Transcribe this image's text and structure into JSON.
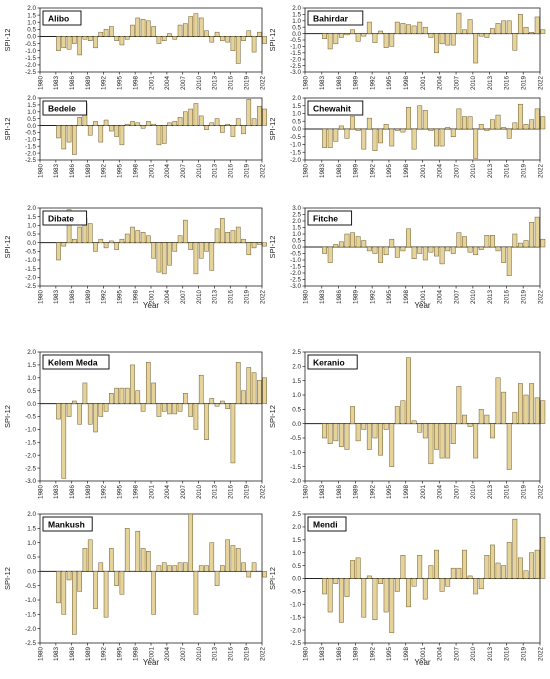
{
  "figure": {
    "colors": {
      "bar_fill": "#e6d39a",
      "bar_stroke": "#6b5a2e",
      "axis": "#222222",
      "title_box": "#000000"
    },
    "shared_xticks": [
      "1980",
      "1983",
      "1986",
      "1989",
      "1992",
      "1995",
      "1998",
      "2001",
      "2004",
      "2007",
      "2010",
      "2013",
      "2016",
      "2019",
      "2022"
    ],
    "ylabel": "SPI-12",
    "xlabel": "Year"
  },
  "chart_data": [
    {
      "type": "bar",
      "title": "Alibo",
      "ylabel": "SPI-12",
      "xlabel": "",
      "ylim": [
        -2.5,
        2.0
      ],
      "yticks": [
        "2.0",
        "1.5",
        "1.0",
        "0.5",
        "0.0",
        "-0.5",
        "-1.0",
        "-1.5",
        "-2.0",
        "-2.5"
      ],
      "x": [
        1983,
        1984,
        1985,
        1986,
        1987,
        1988,
        1989,
        1990,
        1991,
        1992,
        1993,
        1994,
        1995,
        1996,
        1997,
        1998,
        1999,
        2000,
        2001,
        2002,
        2003,
        2004,
        2005,
        2006,
        2007,
        2008,
        2009,
        2010,
        2011,
        2012,
        2013,
        2014,
        2015,
        2016,
        2017,
        2018,
        2019,
        2020,
        2021,
        2022
      ],
      "values": [
        -1.0,
        -0.8,
        -0.9,
        -0.5,
        -1.3,
        -0.2,
        -0.3,
        -0.8,
        0.3,
        0.5,
        0.7,
        -0.3,
        -0.6,
        -0.2,
        0.8,
        1.3,
        1.2,
        1.1,
        0.7,
        -0.5,
        -0.3,
        0.2,
        -0.2,
        0.8,
        0.9,
        1.4,
        1.6,
        1.3,
        0.4,
        -0.4,
        0.3,
        -0.3,
        -0.4,
        -1.0,
        -1.9,
        -0.3,
        0.4,
        -1.1,
        0.3,
        -0.5
      ],
      "grid": false
    },
    {
      "type": "bar",
      "title": "Bahirdar",
      "ylabel": "SPI-12",
      "xlabel": "",
      "ylim": [
        -3.0,
        2.0
      ],
      "yticks": [
        "2.0",
        "1.5",
        "1.0",
        "0.5",
        "0.0",
        "-0.5",
        "-1.0",
        "-1.5",
        "-2.0",
        "-2.5",
        "-3.0"
      ],
      "x": [
        1983,
        1984,
        1985,
        1986,
        1987,
        1988,
        1989,
        1990,
        1991,
        1992,
        1993,
        1994,
        1995,
        1996,
        1997,
        1998,
        1999,
        2000,
        2001,
        2002,
        2003,
        2004,
        2005,
        2006,
        2007,
        2008,
        2009,
        2010,
        2011,
        2012,
        2013,
        2014,
        2015,
        2016,
        2017,
        2018,
        2019,
        2020,
        2021,
        2022
      ],
      "values": [
        -0.4,
        -1.2,
        -0.8,
        -0.3,
        -0.1,
        0.3,
        -0.6,
        -0.2,
        0.9,
        -0.7,
        0.2,
        -1.1,
        -1.0,
        0.9,
        0.8,
        0.7,
        0.6,
        0.9,
        0.5,
        -0.3,
        -1.5,
        -0.8,
        -0.9,
        -0.9,
        1.6,
        0.3,
        1.1,
        -2.3,
        -0.2,
        -0.3,
        0.4,
        0.8,
        1.0,
        1.0,
        -1.3,
        1.5,
        0.5,
        0.1,
        1.3,
        0.3
      ],
      "grid": false
    },
    {
      "type": "bar",
      "title": "Bedele",
      "ylabel": "SPI-12",
      "xlabel": "",
      "ylim": [
        -2.5,
        2.0
      ],
      "yticks": [
        "2.0",
        "1.5",
        "1.0",
        "0.5",
        "0.0",
        "-0.5",
        "-1.0",
        "-1.5",
        "-2.0",
        "-2.5"
      ],
      "x": [
        1983,
        1984,
        1985,
        1986,
        1987,
        1988,
        1989,
        1990,
        1991,
        1992,
        1993,
        1994,
        1995,
        1996,
        1997,
        1998,
        1999,
        2000,
        2001,
        2002,
        2003,
        2004,
        2005,
        2006,
        2007,
        2008,
        2009,
        2010,
        2011,
        2012,
        2013,
        2014,
        2015,
        2016,
        2017,
        2018,
        2019,
        2020,
        2021,
        2022
      ],
      "values": [
        -0.9,
        -1.7,
        -1.2,
        -2.1,
        0.6,
        1.6,
        -0.7,
        0.3,
        -1.2,
        0.4,
        -0.4,
        -0.8,
        -1.4,
        0.1,
        0.3,
        0.2,
        -0.2,
        0.3,
        0.1,
        -1.4,
        -1.3,
        0.2,
        0.3,
        0.6,
        1.0,
        1.2,
        1.6,
        0.7,
        -0.3,
        0.2,
        0.5,
        -0.5,
        0.1,
        -0.8,
        0.5,
        -0.6,
        1.9,
        0.5,
        1.4,
        1.2
      ],
      "grid": false
    },
    {
      "type": "bar",
      "title": "Chewahit",
      "ylabel": "SPI-12",
      "xlabel": "",
      "ylim": [
        -2.0,
        2.0
      ],
      "yticks": [
        "2.0",
        "1.5",
        "1.0",
        "0.5",
        "0.0",
        "-0.5",
        "-1.0",
        "-1.5",
        "-2.0"
      ],
      "x": [
        1983,
        1984,
        1985,
        1986,
        1987,
        1988,
        1989,
        1990,
        1991,
        1992,
        1993,
        1994,
        1995,
        1996,
        1997,
        1998,
        1999,
        2000,
        2001,
        2002,
        2003,
        2004,
        2005,
        2006,
        2007,
        2008,
        2009,
        2010,
        2011,
        2012,
        2013,
        2014,
        2015,
        2016,
        2017,
        2018,
        2019,
        2020,
        2021,
        2022
      ],
      "values": [
        -1.2,
        -1.2,
        -0.8,
        0.2,
        -0.6,
        0.8,
        -0.1,
        -1.3,
        0.7,
        -1.4,
        -0.9,
        0.3,
        -1.1,
        -0.1,
        -0.2,
        1.4,
        -1.3,
        1.5,
        1.2,
        -0.1,
        -1.1,
        -1.1,
        0.1,
        -0.5,
        1.3,
        0.8,
        0.8,
        -1.9,
        0.3,
        -0.1,
        0.6,
        0.9,
        0.1,
        -0.6,
        0.4,
        1.6,
        0.3,
        0.6,
        1.3,
        0.8
      ],
      "grid": false
    },
    {
      "type": "bar",
      "title": "Dibate",
      "ylabel": "SPI-12",
      "xlabel": "Year",
      "ylim": [
        -2.5,
        2.0
      ],
      "yticks": [
        "2.0",
        "1.5",
        "1.0",
        "0.5",
        "0.0",
        "-0.5",
        "-1.0",
        "-1.5",
        "-2.0",
        "-2.5"
      ],
      "x": [
        1983,
        1984,
        1985,
        1986,
        1987,
        1988,
        1989,
        1990,
        1991,
        1992,
        1993,
        1994,
        1995,
        1996,
        1997,
        1998,
        1999,
        2000,
        2001,
        2002,
        2003,
        2004,
        2005,
        2006,
        2007,
        2008,
        2009,
        2010,
        2011,
        2012,
        2013,
        2014,
        2015,
        2016,
        2017,
        2018,
        2019,
        2020,
        2021,
        2022
      ],
      "values": [
        -1.0,
        -0.2,
        1.9,
        0.2,
        0.9,
        1.4,
        1.1,
        -0.5,
        0.2,
        -0.3,
        0.1,
        -0.4,
        0.2,
        0.5,
        0.9,
        0.7,
        0.6,
        0.4,
        -0.9,
        -1.7,
        -1.8,
        -1.3,
        -0.5,
        0.4,
        1.3,
        -0.4,
        -1.8,
        -0.9,
        -0.5,
        -1.6,
        0.8,
        1.4,
        0.6,
        0.7,
        0.9,
        0.2,
        -0.7,
        -0.3,
        -0.1,
        -0.2
      ],
      "grid": false
    },
    {
      "type": "bar",
      "title": "Fitche",
      "ylabel": "SPI-12",
      "xlabel": "Year",
      "ylim": [
        -3.0,
        3.0
      ],
      "yticks": [
        "3.0",
        "2.5",
        "2.0",
        "1.5",
        "1.0",
        "0.5",
        "0.0",
        "-0.5",
        "-1.0",
        "-1.5",
        "-2.0",
        "-2.5",
        "-3.0"
      ],
      "x": [
        1983,
        1984,
        1985,
        1986,
        1987,
        1988,
        1989,
        1990,
        1991,
        1992,
        1993,
        1994,
        1995,
        1996,
        1997,
        1998,
        1999,
        2000,
        2001,
        2002,
        2003,
        2004,
        2005,
        2006,
        2007,
        2008,
        2009,
        2010,
        2011,
        2012,
        2013,
        2014,
        2015,
        2016,
        2017,
        2018,
        2019,
        2020,
        2021,
        2022
      ],
      "values": [
        -0.5,
        -1.2,
        0.2,
        0.4,
        1.0,
        1.1,
        0.8,
        0.5,
        -0.3,
        -0.5,
        -1.2,
        -0.6,
        0.6,
        -0.8,
        -0.3,
        1.4,
        -0.9,
        -0.5,
        -1.0,
        -0.4,
        -0.7,
        -1.3,
        -0.3,
        -0.5,
        1.1,
        0.8,
        -0.4,
        -0.6,
        -0.2,
        0.9,
        0.9,
        -0.3,
        -1.2,
        -2.2,
        1.0,
        0.3,
        0.5,
        1.9,
        2.3,
        0.6
      ],
      "grid": false
    },
    {
      "type": "bar",
      "title": "Kelem Meda",
      "ylabel": "SPI-12",
      "xlabel": "",
      "ylim": [
        -3.0,
        2.0
      ],
      "yticks": [
        "2.0",
        "1.5",
        "1.0",
        "0.5",
        "0.0",
        "-0.5",
        "-1.0",
        "-1.5",
        "-2.0",
        "-2.5",
        "-3.0"
      ],
      "x": [
        1983,
        1984,
        1985,
        1986,
        1987,
        1988,
        1989,
        1990,
        1991,
        1992,
        1993,
        1994,
        1995,
        1996,
        1997,
        1998,
        1999,
        2000,
        2001,
        2002,
        2003,
        2004,
        2005,
        2006,
        2007,
        2008,
        2009,
        2010,
        2011,
        2012,
        2013,
        2014,
        2015,
        2016,
        2017,
        2018,
        2019,
        2020,
        2021,
        2022
      ],
      "values": [
        -0.6,
        -2.9,
        -0.5,
        0.1,
        -0.8,
        0.8,
        -0.8,
        -1.1,
        -0.5,
        -0.3,
        0.4,
        0.6,
        0.6,
        0.6,
        1.5,
        0.5,
        -0.3,
        1.6,
        0.8,
        -0.5,
        -0.3,
        -0.4,
        -0.4,
        -0.3,
        0.4,
        -0.5,
        -1.0,
        1.1,
        -1.4,
        0.2,
        -0.1,
        0.1,
        -0.2,
        -2.3,
        1.6,
        0.5,
        1.4,
        1.2,
        0.9,
        1.0
      ],
      "grid": false
    },
    {
      "type": "bar",
      "title": "Keranio",
      "ylabel": "SPI-12",
      "xlabel": "",
      "ylim": [
        -2.0,
        2.5
      ],
      "yticks": [
        "2.5",
        "2.0",
        "1.5",
        "1.0",
        "0.5",
        "0.0",
        "-0.5",
        "-1.0",
        "-1.5",
        "-2.0"
      ],
      "x": [
        1983,
        1984,
        1985,
        1986,
        1987,
        1988,
        1989,
        1990,
        1991,
        1992,
        1993,
        1994,
        1995,
        1996,
        1997,
        1998,
        1999,
        2000,
        2001,
        2002,
        2003,
        2004,
        2005,
        2006,
        2007,
        2008,
        2009,
        2010,
        2011,
        2012,
        2013,
        2014,
        2015,
        2016,
        2017,
        2018,
        2019,
        2020,
        2021,
        2022
      ],
      "values": [
        -0.5,
        -0.7,
        -0.6,
        -0.8,
        -0.9,
        0.6,
        -0.6,
        -0.2,
        -0.9,
        -0.5,
        -1.1,
        -0.2,
        -1.5,
        0.6,
        0.8,
        2.3,
        0.1,
        -0.3,
        -0.5,
        -1.4,
        -0.9,
        -1.2,
        -1.2,
        -0.7,
        1.3,
        0.3,
        -0.1,
        -1.2,
        0.5,
        0.3,
        -0.5,
        1.6,
        1.1,
        -1.6,
        0.4,
        1.4,
        1.0,
        1.4,
        0.9,
        0.8
      ],
      "grid": false
    },
    {
      "type": "bar",
      "title": "Mankush",
      "ylabel": "SPI-12",
      "xlabel": "Year",
      "ylim": [
        -2.5,
        2.0
      ],
      "yticks": [
        "2.0",
        "1.5",
        "1.0",
        "0.5",
        "0.0",
        "-0.5",
        "-1.0",
        "-1.5",
        "-2.0",
        "-2.5"
      ],
      "x": [
        1983,
        1984,
        1985,
        1986,
        1987,
        1988,
        1989,
        1990,
        1991,
        1992,
        1993,
        1994,
        1995,
        1996,
        1997,
        1998,
        1999,
        2000,
        2001,
        2002,
        2003,
        2004,
        2005,
        2006,
        2007,
        2008,
        2009,
        2010,
        2011,
        2012,
        2013,
        2014,
        2015,
        2016,
        2017,
        2018,
        2019,
        2020,
        2021,
        2022
      ],
      "values": [
        -1.1,
        -1.5,
        -0.3,
        -2.2,
        -0.7,
        0.8,
        1.1,
        -1.3,
        0.3,
        -1.6,
        0.8,
        -0.5,
        -0.8,
        1.5,
        0.0,
        1.4,
        0.8,
        0.7,
        -1.5,
        0.2,
        0.3,
        0.2,
        0.2,
        0.3,
        0.3,
        2.0,
        -1.5,
        0.2,
        0.2,
        1.0,
        -0.5,
        0.2,
        1.1,
        0.9,
        0.8,
        0.3,
        -0.2,
        0.3,
        0.0,
        -0.2
      ],
      "grid": false
    },
    {
      "type": "bar",
      "title": "Mendi",
      "ylabel": "SPI-12",
      "xlabel": "Year",
      "ylim": [
        -2.5,
        2.5
      ],
      "yticks": [
        "2.5",
        "2.0",
        "1.5",
        "1.0",
        "0.5",
        "0.0",
        "-0.5",
        "-1.0",
        "-1.5",
        "-2.0",
        "-2.5"
      ],
      "x": [
        1983,
        1984,
        1985,
        1986,
        1987,
        1988,
        1989,
        1990,
        1991,
        1992,
        1993,
        1994,
        1995,
        1996,
        1997,
        1998,
        1999,
        2000,
        2001,
        2002,
        2003,
        2004,
        2005,
        2006,
        2007,
        2008,
        2009,
        2010,
        2011,
        2012,
        2013,
        2014,
        2015,
        2016,
        2017,
        2018,
        2019,
        2020,
        2021,
        2022
      ],
      "values": [
        -0.6,
        -1.3,
        -0.2,
        -1.7,
        -0.7,
        0.7,
        0.8,
        -1.5,
        0.1,
        -1.6,
        -0.2,
        -1.3,
        -2.1,
        -0.5,
        0.9,
        -1.1,
        -0.3,
        0.9,
        -0.8,
        0.5,
        1.1,
        -0.5,
        -0.3,
        0.4,
        0.4,
        1.1,
        0.1,
        -0.6,
        -0.4,
        0.9,
        1.3,
        0.6,
        0.5,
        1.4,
        2.3,
        0.8,
        0.3,
        1.0,
        1.1,
        1.6
      ],
      "grid": false
    }
  ]
}
